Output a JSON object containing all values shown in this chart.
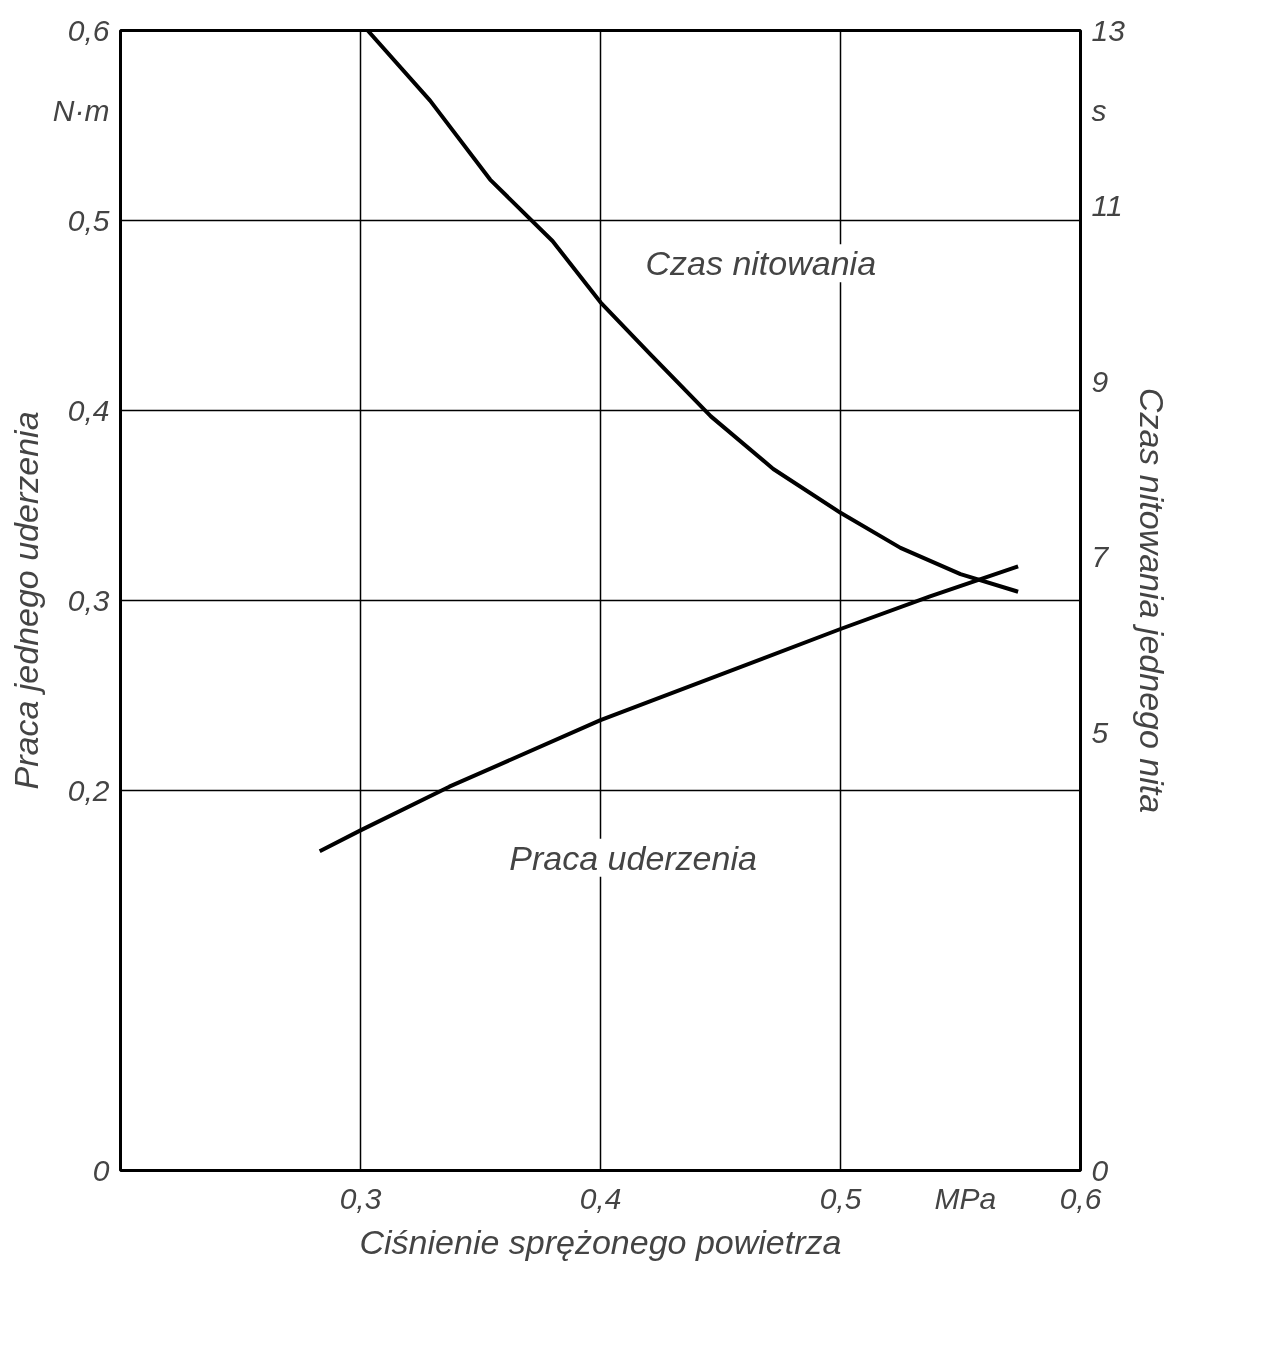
{
  "chart_data": {
    "type": "line",
    "xlabel": "Ciśnienie sprężonego powietrza",
    "ylabel": "Praca jednego uderzenia",
    "y2label": "Czas nitowania jednego nita",
    "annotations": [
      "MPa",
      "N·m",
      "s"
    ],
    "xlim": [
      0.2,
      0.6
    ],
    "xticks": [
      {
        "value": 0.3,
        "label": "0,3"
      },
      {
        "value": 0.4,
        "label": "0,4"
      },
      {
        "value": 0.5,
        "label": "0,5"
      },
      {
        "value": 0.6,
        "label": "0,6"
      }
    ],
    "ylim": [
      0,
      0.6
    ],
    "yticks": [
      0,
      {
        "value": 0.2,
        "label": "0,2"
      },
      {
        "value": 0.3,
        "label": "0,3"
      },
      {
        "value": 0.4,
        "label": "0,4"
      },
      {
        "value": 0.5,
        "label": "0,5"
      },
      {
        "value": 0.6,
        "label": "0,6"
      }
    ],
    "y2lim": [
      0,
      13
    ],
    "y2ticks": [
      0,
      5,
      7,
      9,
      11,
      13
    ],
    "grid": true,
    "marker": "none",
    "line_style": "solid",
    "series": [
      {
        "name": "Czas nitowania",
        "color": "#000000",
        "axis": "y2",
        "x": [
          0.303,
          0.329,
          0.354,
          0.38,
          0.4,
          0.421,
          0.446,
          0.472,
          0.5,
          0.525,
          0.55,
          0.574
        ],
        "values": [
          13.0,
          12.2,
          11.3,
          10.6,
          9.9,
          9.3,
          8.6,
          8.0,
          7.5,
          7.1,
          6.8,
          6.6
        ]
      },
      {
        "name": "Praca uderzenia",
        "color": "#000000",
        "x": [
          0.283,
          0.3,
          0.337,
          0.4,
          0.5,
          0.537,
          0.574
        ],
        "values": [
          0.168,
          0.179,
          0.202,
          0.237,
          0.285,
          0.302,
          0.318
        ]
      }
    ]
  }
}
